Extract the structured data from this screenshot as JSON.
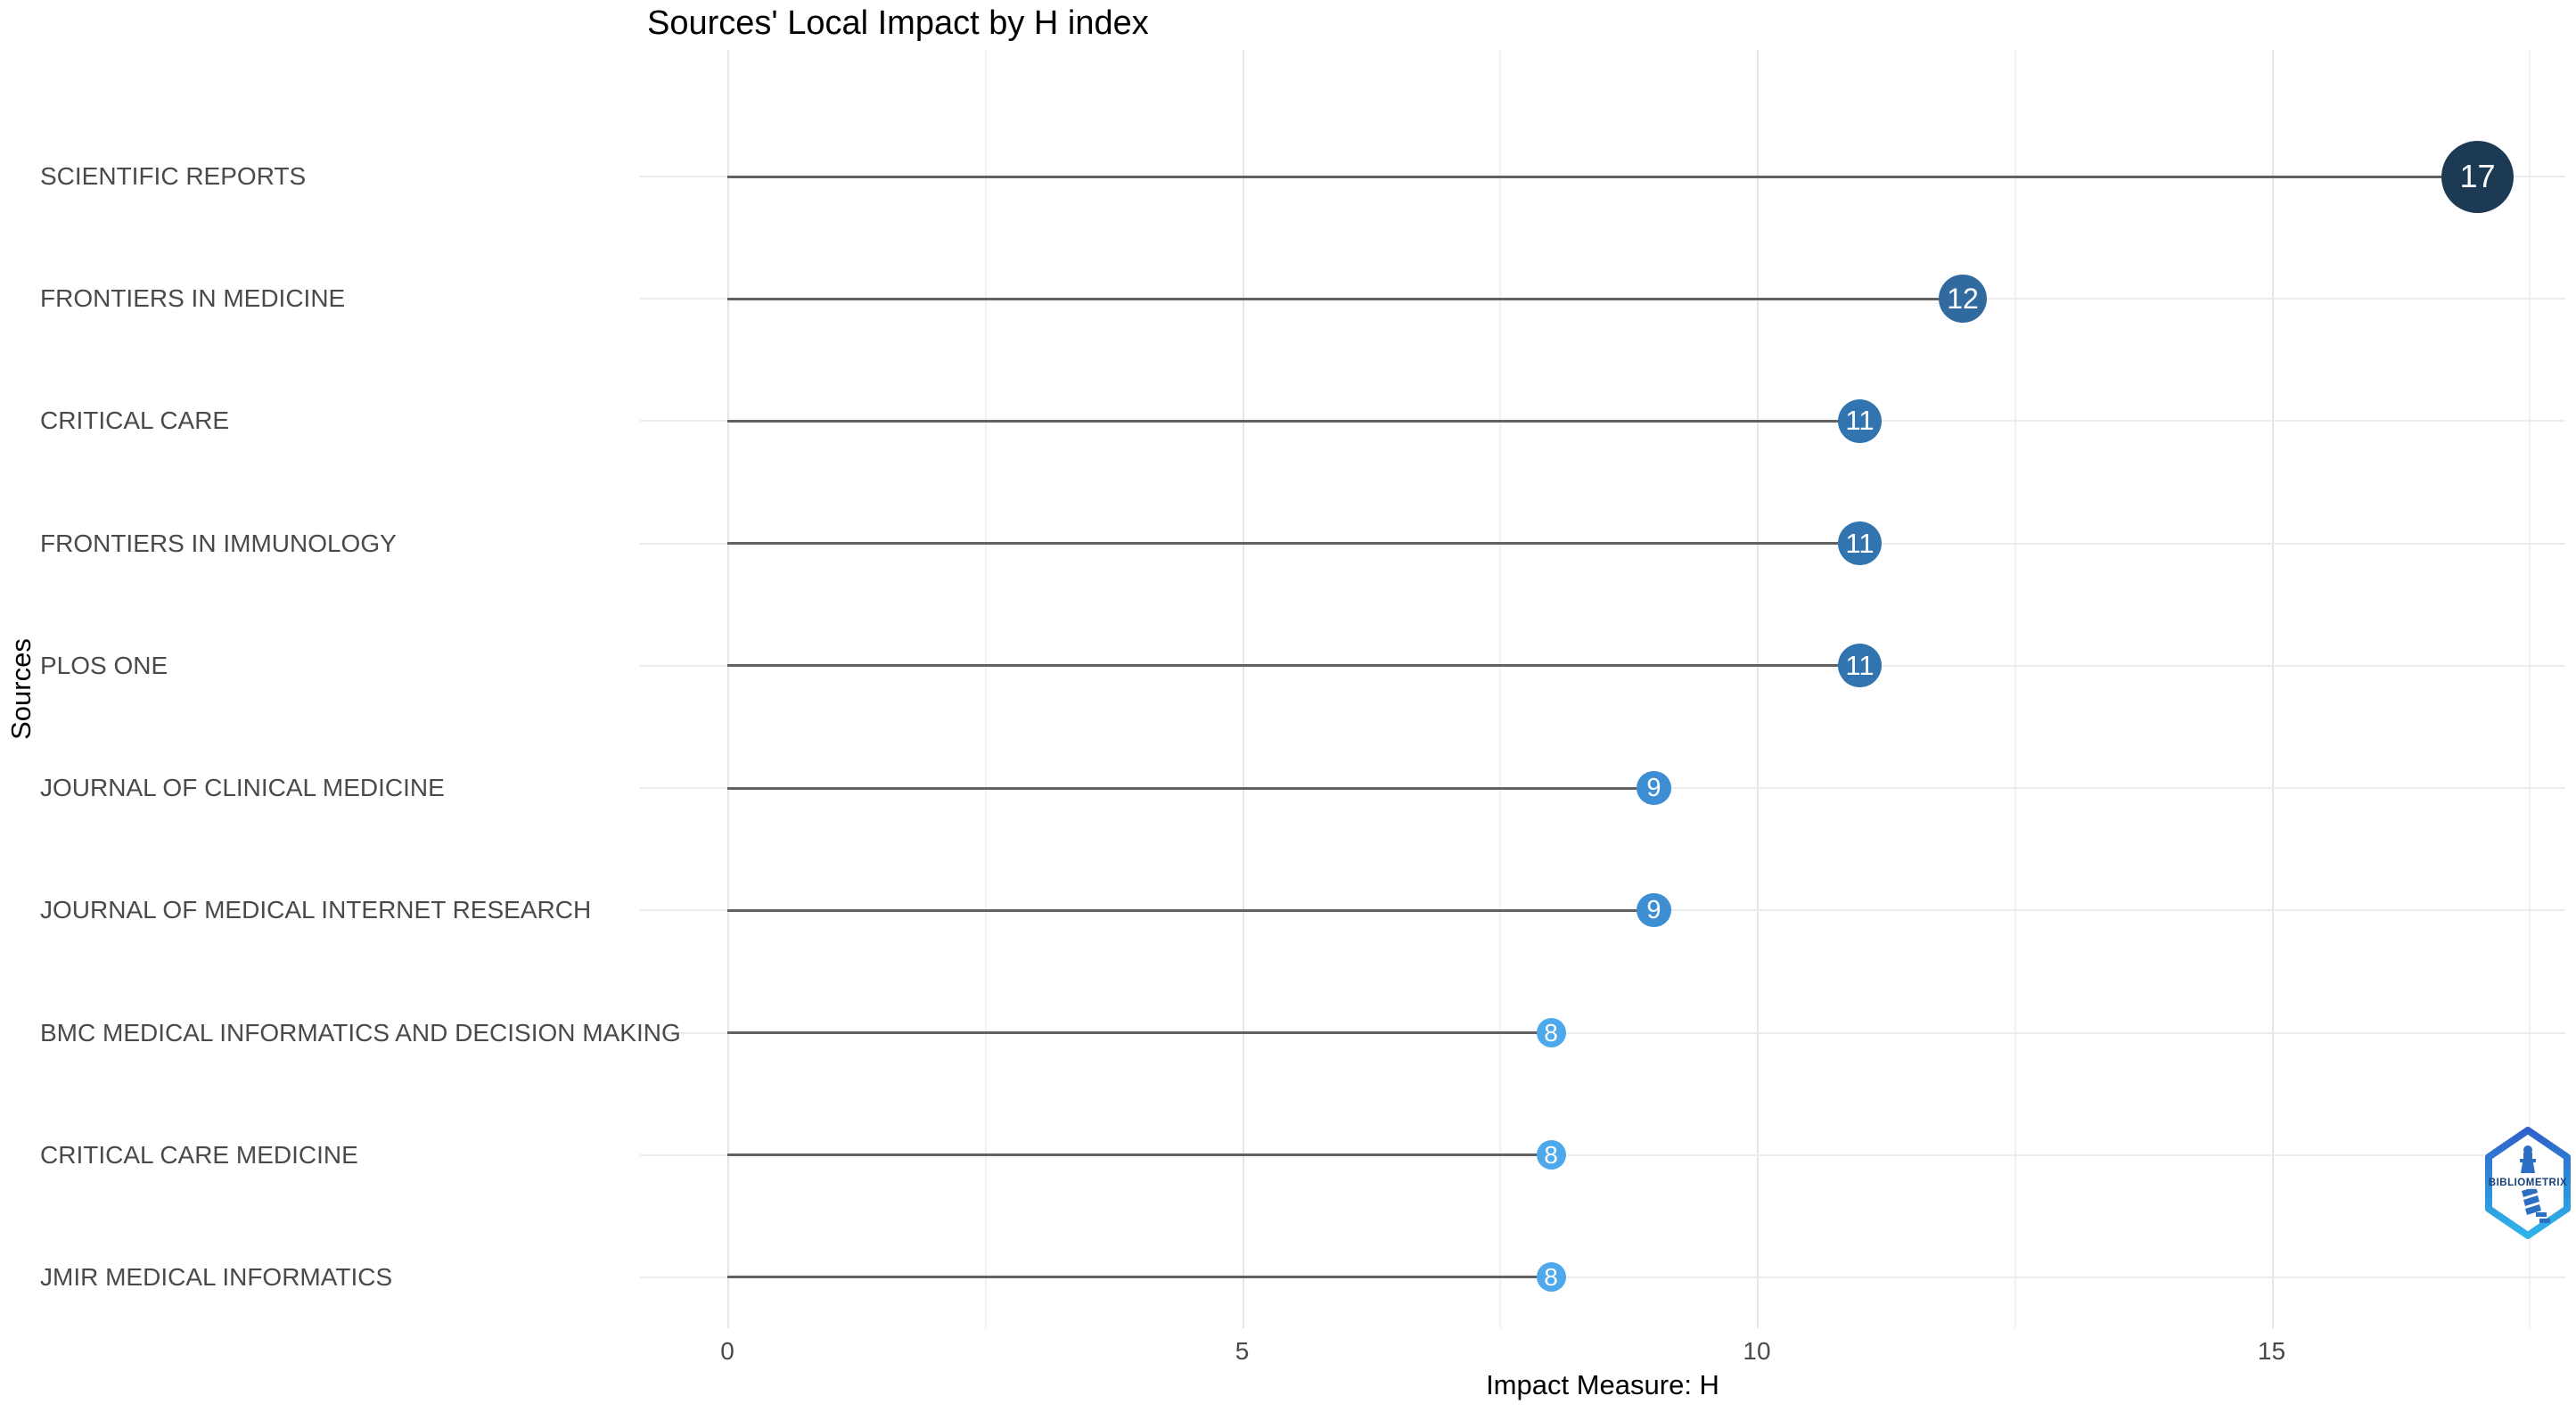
{
  "chart_data": {
    "type": "lollipop",
    "title": "Sources' Local Impact by H index",
    "xlabel": "Impact Measure: H",
    "ylabel": "Sources",
    "xlim": [
      -0.85,
      17.85
    ],
    "x_major_ticks": [
      0,
      5,
      10,
      15
    ],
    "x_minor_ticks": [
      2.5,
      7.5,
      12.5,
      17.5
    ],
    "grid": true,
    "legend": false,
    "points": [
      {
        "category": "SCIENTIFIC REPORTS",
        "value": 17,
        "color": "#1d3a55"
      },
      {
        "category": "FRONTIERS IN MEDICINE",
        "value": 12,
        "color": "#316a9e"
      },
      {
        "category": "CRITICAL CARE",
        "value": 11,
        "color": "#3174af"
      },
      {
        "category": "FRONTIERS IN IMMUNOLOGY",
        "value": 11,
        "color": "#3174af"
      },
      {
        "category": "PLOS ONE",
        "value": 11,
        "color": "#3174af"
      },
      {
        "category": "JOURNAL OF CLINICAL MEDICINE",
        "value": 9,
        "color": "#3e8ed4"
      },
      {
        "category": "JOURNAL OF MEDICAL INTERNET RESEARCH",
        "value": 9,
        "color": "#3e8ed4"
      },
      {
        "category": "BMC MEDICAL INFORMATICS AND DECISION MAKING",
        "value": 8,
        "color": "#4da8ec"
      },
      {
        "category": "CRITICAL CARE MEDICINE",
        "value": 8,
        "color": "#4da8ec"
      },
      {
        "category": "JMIR MEDICAL INFORMATICS",
        "value": 8,
        "color": "#4da8ec"
      }
    ]
  },
  "watermark": {
    "label": "BIBLIOMETRIX"
  },
  "colors": {
    "background": "#ffffff",
    "stem": "#616161",
    "row_line": "#ececec",
    "grid_major": "#e6e6e6",
    "grid_minor": "#f1f1f1",
    "axis_text": "#4a4a4a",
    "circle_text": "#ffffff",
    "logo_border_top": "#2e62c8",
    "logo_border_bottom": "#2fb4ea",
    "logo_glyph": "#2d6fc2",
    "logo_text": "#17407c"
  }
}
